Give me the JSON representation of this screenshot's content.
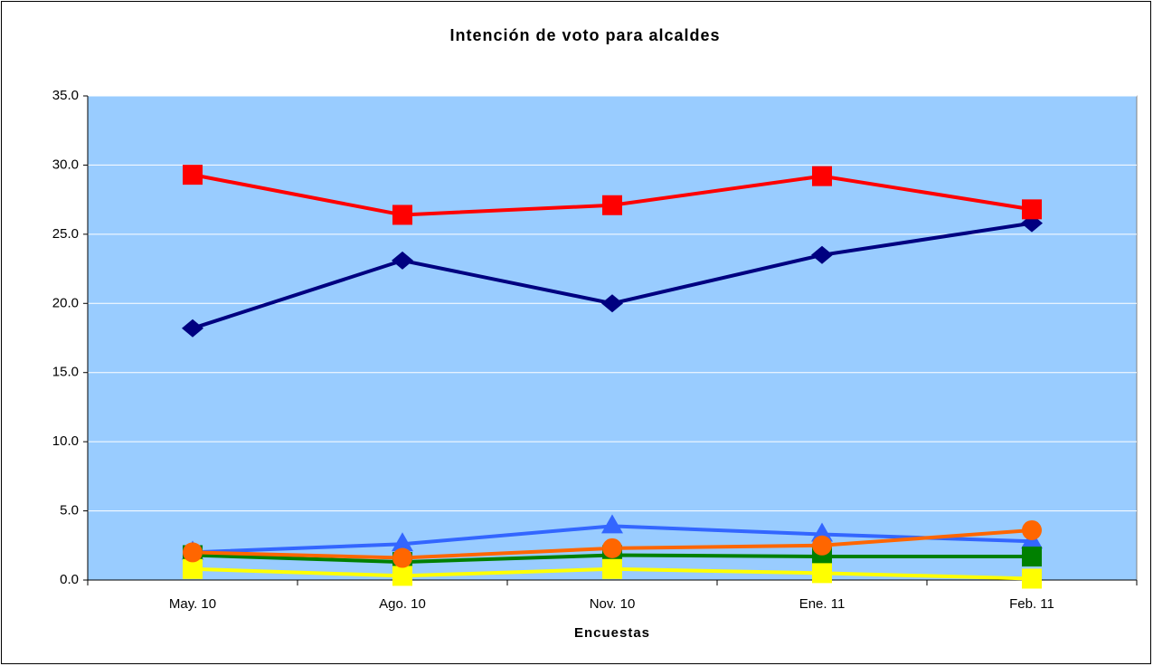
{
  "chart_data": {
    "type": "line",
    "title": "Intención de voto para alcaldes",
    "x_label": "Encuestas",
    "categories": [
      "May. 10",
      "Ago. 10",
      "Nov. 10",
      "Ene. 11",
      "Feb. 11"
    ],
    "ylim": [
      0,
      35
    ],
    "yticks": [
      {
        "value": 0,
        "label": "0.0"
      },
      {
        "value": 5,
        "label": "5.0"
      },
      {
        "value": 10,
        "label": "10.0"
      },
      {
        "value": 15,
        "label": "15.0"
      },
      {
        "value": 20,
        "label": "20.0"
      },
      {
        "value": 25,
        "label": "25.0"
      },
      {
        "value": 30,
        "label": "30.0"
      },
      {
        "value": 35,
        "label": "35.0"
      }
    ],
    "grid": true,
    "background": "#99ccff",
    "series": [
      {
        "color": "#000080",
        "marker": "diamond",
        "values": [
          18.2,
          23.1,
          20.0,
          23.5,
          25.8
        ]
      },
      {
        "color": "#ff0000",
        "marker": "square",
        "values": [
          29.3,
          26.4,
          27.1,
          29.2,
          26.8
        ]
      },
      {
        "color": "#3366ff",
        "marker": "triangle",
        "values": [
          2.0,
          2.6,
          3.9,
          3.3,
          2.8
        ]
      },
      {
        "color": "#008000",
        "marker": "square",
        "values": [
          1.8,
          1.3,
          1.8,
          1.7,
          1.7
        ]
      },
      {
        "color": "#ffff00",
        "marker": "square",
        "values": [
          0.8,
          0.3,
          0.8,
          0.5,
          0.1
        ]
      },
      {
        "color": "#ff6600",
        "marker": "circle",
        "values": [
          2.0,
          1.6,
          2.3,
          2.5,
          3.6
        ]
      }
    ]
  }
}
